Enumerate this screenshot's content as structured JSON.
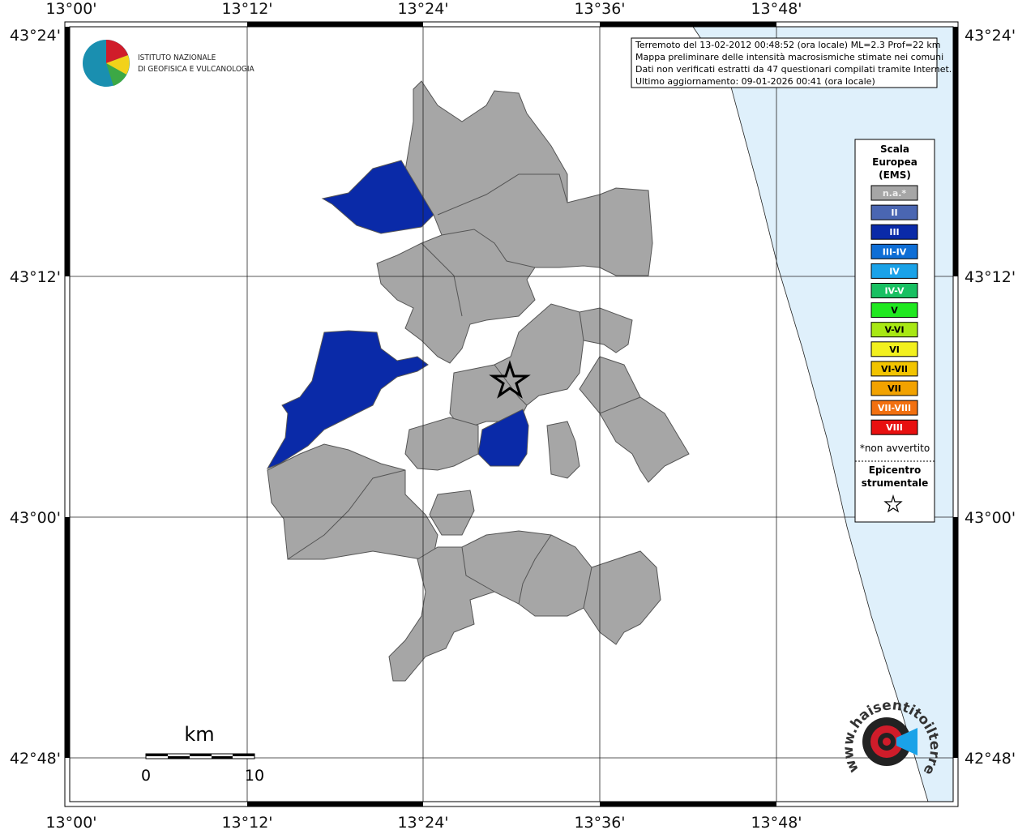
{
  "map": {
    "lon_labels": [
      "13°00'",
      "13°12'",
      "13°24'",
      "13°36'",
      "13°48'"
    ],
    "lat_labels": [
      "43°24'",
      "43°12'",
      "43°00'",
      "42°48'"
    ],
    "institute": [
      "ISTITUTO NAZIONALE",
      "DI GEOFISICA E VULCANOLOGIA"
    ],
    "info": [
      "Terremoto del 13-02-2012 00:48:52 (ora locale) ML=2.3 Prof=22 km",
      "Mappa preliminare delle intensità macrosismiche stimate nei comuni",
      "Dati non verificati estratti da 47 questionari compilati tramite Internet.",
      "Ultimo aggiornamento: 09-01-2026 00:41 (ora locale)"
    ],
    "legend": {
      "title": [
        "Scala",
        "Europea",
        "(EMS)"
      ],
      "items": [
        {
          "label": "n.a.*",
          "color": "#a6a6a6"
        },
        {
          "label": "II",
          "color": "#4a66b2"
        },
        {
          "label": "III",
          "color": "#0a2aa8"
        },
        {
          "label": "III-IV",
          "color": "#0e6ed6"
        },
        {
          "label": "IV",
          "color": "#1aa2e8"
        },
        {
          "label": "IV-V",
          "color": "#18c062"
        },
        {
          "label": "V",
          "color": "#20e820"
        },
        {
          "label": "V-VI",
          "color": "#a8e814"
        },
        {
          "label": "VI",
          "color": "#f2f01e"
        },
        {
          "label": "VI-VII",
          "color": "#f2c400"
        },
        {
          "label": "VII",
          "color": "#f2a200"
        },
        {
          "label": "VII-VIII",
          "color": "#f27010"
        },
        {
          "label": "VIII",
          "color": "#e81010"
        }
      ],
      "note": "*non avvertito",
      "epicenter": [
        "Epicentro",
        "strumentale"
      ]
    },
    "scale": {
      "unit": "km",
      "labels": [
        "0",
        "10"
      ]
    },
    "site": "www.haisentitoilterremoto.it"
  }
}
